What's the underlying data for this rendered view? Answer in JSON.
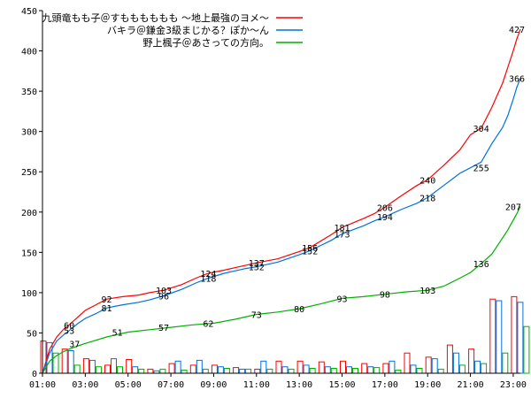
{
  "chart_data": {
    "type": "line",
    "title": "",
    "xlabel": "",
    "ylabel": "",
    "ylim": [
      0,
      450
    ],
    "xlim": [
      "01:00",
      "23:20"
    ],
    "y_ticks": [
      "0",
      "50",
      "100",
      "150",
      "200",
      "250",
      "300",
      "350",
      "400",
      "450"
    ],
    "x_ticks": [
      "01:00",
      "03:00",
      "05:00",
      "07:00",
      "09:00",
      "11:00",
      "13:00",
      "15:00",
      "17:00",
      "19:00",
      "21:00",
      "23:00"
    ],
    "grid": false,
    "legend_position": "top-left",
    "series": [
      {
        "name": "九頭竜もも子＠すもももももも ～地上最強のヨメ～",
        "color": "#ff0000",
        "points": [
          [
            "01:00",
            0
          ],
          [
            "01:20",
            30
          ],
          [
            "01:40",
            45
          ],
          [
            "02:00",
            55
          ],
          [
            "02:15",
            60
          ],
          [
            "02:40",
            70
          ],
          [
            "03:00",
            78
          ],
          [
            "03:30",
            85
          ],
          [
            "04:00",
            92
          ],
          [
            "04:45",
            95
          ],
          [
            "05:30",
            97
          ],
          [
            "06:00",
            100
          ],
          [
            "06:40",
            103
          ],
          [
            "07:30",
            110
          ],
          [
            "08:10",
            118
          ],
          [
            "08:45",
            124
          ],
          [
            "09:30",
            128
          ],
          [
            "10:30",
            134
          ],
          [
            "11:00",
            137
          ],
          [
            "12:00",
            142
          ],
          [
            "13:00",
            151
          ],
          [
            "13:30",
            156
          ],
          [
            "14:30",
            172
          ],
          [
            "15:00",
            181
          ],
          [
            "16:00",
            192
          ],
          [
            "16:30",
            198
          ],
          [
            "17:00",
            206
          ],
          [
            "17:45",
            220
          ],
          [
            "18:30",
            233
          ],
          [
            "19:00",
            240
          ],
          [
            "19:45",
            258
          ],
          [
            "20:30",
            277
          ],
          [
            "21:00",
            296
          ],
          [
            "21:30",
            304
          ],
          [
            "22:00",
            330
          ],
          [
            "22:30",
            360
          ],
          [
            "22:45",
            380
          ],
          [
            "23:00",
            400
          ],
          [
            "23:10",
            415
          ],
          [
            "23:20",
            427
          ]
        ],
        "labels": [
          [
            "02:15",
            60,
            "60"
          ],
          [
            "04:00",
            92,
            "92"
          ],
          [
            "06:40",
            103,
            "103"
          ],
          [
            "08:45",
            124,
            "124"
          ],
          [
            "11:00",
            137,
            "137"
          ],
          [
            "13:30",
            156,
            "156"
          ],
          [
            "15:00",
            181,
            "181"
          ],
          [
            "17:00",
            206,
            "206"
          ],
          [
            "19:00",
            240,
            "240"
          ],
          [
            "21:30",
            304,
            "304"
          ],
          [
            "23:10",
            427,
            "427"
          ]
        ]
      },
      {
        "name": "バキラ＠鎌金3級まじかる？ぽか～ん",
        "color": "#0070e0",
        "points": [
          [
            "01:00",
            0
          ],
          [
            "01:20",
            25
          ],
          [
            "01:40",
            40
          ],
          [
            "02:00",
            48
          ],
          [
            "02:15",
            53
          ],
          [
            "02:40",
            62
          ],
          [
            "03:00",
            68
          ],
          [
            "03:30",
            74
          ],
          [
            "04:00",
            81
          ],
          [
            "04:45",
            85
          ],
          [
            "05:30",
            88
          ],
          [
            "06:00",
            91
          ],
          [
            "06:40",
            96
          ],
          [
            "07:30",
            104
          ],
          [
            "08:10",
            112
          ],
          [
            "08:45",
            118
          ],
          [
            "09:30",
            124
          ],
          [
            "10:30",
            130
          ],
          [
            "11:00",
            132
          ],
          [
            "12:00",
            138
          ],
          [
            "13:00",
            147
          ],
          [
            "13:30",
            152
          ],
          [
            "14:30",
            165
          ],
          [
            "15:00",
            173
          ],
          [
            "16:00",
            183
          ],
          [
            "16:30",
            189
          ],
          [
            "17:00",
            194
          ],
          [
            "17:45",
            203
          ],
          [
            "18:30",
            211
          ],
          [
            "19:00",
            218
          ],
          [
            "19:45",
            233
          ],
          [
            "20:30",
            248
          ],
          [
            "21:00",
            255
          ],
          [
            "21:30",
            262
          ],
          [
            "22:00",
            285
          ],
          [
            "22:30",
            305
          ],
          [
            "22:45",
            320
          ],
          [
            "23:00",
            340
          ],
          [
            "23:10",
            355
          ],
          [
            "23:20",
            366
          ]
        ],
        "labels": [
          [
            "02:15",
            53,
            "53"
          ],
          [
            "04:00",
            81,
            "81"
          ],
          [
            "06:40",
            96,
            "96"
          ],
          [
            "08:45",
            118,
            "118"
          ],
          [
            "11:00",
            132,
            "132"
          ],
          [
            "13:30",
            152,
            "152"
          ],
          [
            "15:00",
            173,
            "173"
          ],
          [
            "17:00",
            194,
            "194"
          ],
          [
            "19:00",
            218,
            "218"
          ],
          [
            "21:30",
            255,
            "255"
          ],
          [
            "23:10",
            366,
            "366"
          ]
        ]
      },
      {
        "name": "野上楓子＠あさっての方向。",
        "color": "#00b000",
        "points": [
          [
            "01:00",
            0
          ],
          [
            "01:20",
            15
          ],
          [
            "01:40",
            22
          ],
          [
            "02:00",
            27
          ],
          [
            "02:15",
            30
          ],
          [
            "02:40",
            34
          ],
          [
            "03:00",
            37
          ],
          [
            "04:00",
            45
          ],
          [
            "05:00",
            51
          ],
          [
            "06:00",
            54
          ],
          [
            "07:00",
            57
          ],
          [
            "08:00",
            60
          ],
          [
            "09:00",
            62
          ],
          [
            "10:00",
            67
          ],
          [
            "11:00",
            73
          ],
          [
            "12:00",
            76
          ],
          [
            "13:00",
            80
          ],
          [
            "14:00",
            86
          ],
          [
            "15:00",
            93
          ],
          [
            "16:00",
            95
          ],
          [
            "17:00",
            98
          ],
          [
            "18:00",
            101
          ],
          [
            "19:00",
            103
          ],
          [
            "19:45",
            108
          ],
          [
            "20:30",
            118
          ],
          [
            "21:00",
            125
          ],
          [
            "21:30",
            136
          ],
          [
            "22:00",
            148
          ],
          [
            "22:30",
            168
          ],
          [
            "22:45",
            178
          ],
          [
            "23:00",
            190
          ],
          [
            "23:10",
            198
          ],
          [
            "23:20",
            207
          ]
        ],
        "labels": [
          [
            "02:30",
            37,
            "37"
          ],
          [
            "04:30",
            51,
            "51"
          ],
          [
            "06:40",
            57,
            "57"
          ],
          [
            "08:45",
            62,
            "62"
          ],
          [
            "11:00",
            73,
            "73"
          ],
          [
            "13:00",
            80,
            "80"
          ],
          [
            "15:00",
            93,
            "93"
          ],
          [
            "17:00",
            98,
            "98"
          ],
          [
            "19:00",
            103,
            "103"
          ],
          [
            "21:30",
            136,
            "136"
          ],
          [
            "23:00",
            207,
            "207"
          ]
        ]
      }
    ],
    "hourly_bars": {
      "hours": [
        "01:00",
        "02:00",
        "03:00",
        "04:00",
        "05:00",
        "06:00",
        "07:00",
        "08:00",
        "09:00",
        "10:00",
        "11:00",
        "12:00",
        "13:00",
        "14:00",
        "15:00",
        "16:00",
        "17:00",
        "18:00",
        "19:00",
        "20:00",
        "21:00",
        "22:00",
        "23:00"
      ],
      "series": [
        {
          "name": "九頭竜もも子＠すもももももも ～地上最強のヨメ～",
          "color": "#ff0000",
          "values": [
            40,
            30,
            18,
            10,
            17,
            5,
            12,
            10,
            10,
            7,
            5,
            15,
            15,
            14,
            15,
            12,
            12,
            25,
            20,
            35,
            30,
            92,
            95
          ]
        },
        {
          "name": "バキラ＠鎌金3級まじかる？ぽか～ん",
          "color": "#0070e0",
          "values": [
            38,
            28,
            16,
            18,
            8,
            3,
            15,
            16,
            8,
            5,
            15,
            8,
            10,
            8,
            8,
            8,
            15,
            10,
            18,
            25,
            15,
            90,
            88
          ]
        },
        {
          "name": "野上楓子＠あさっての方向。",
          "color": "#00b000",
          "values": [
            25,
            10,
            8,
            8,
            5,
            5,
            4,
            5,
            6,
            5,
            5,
            5,
            6,
            6,
            6,
            7,
            4,
            6,
            5,
            10,
            12,
            25,
            58
          ]
        }
      ]
    }
  }
}
